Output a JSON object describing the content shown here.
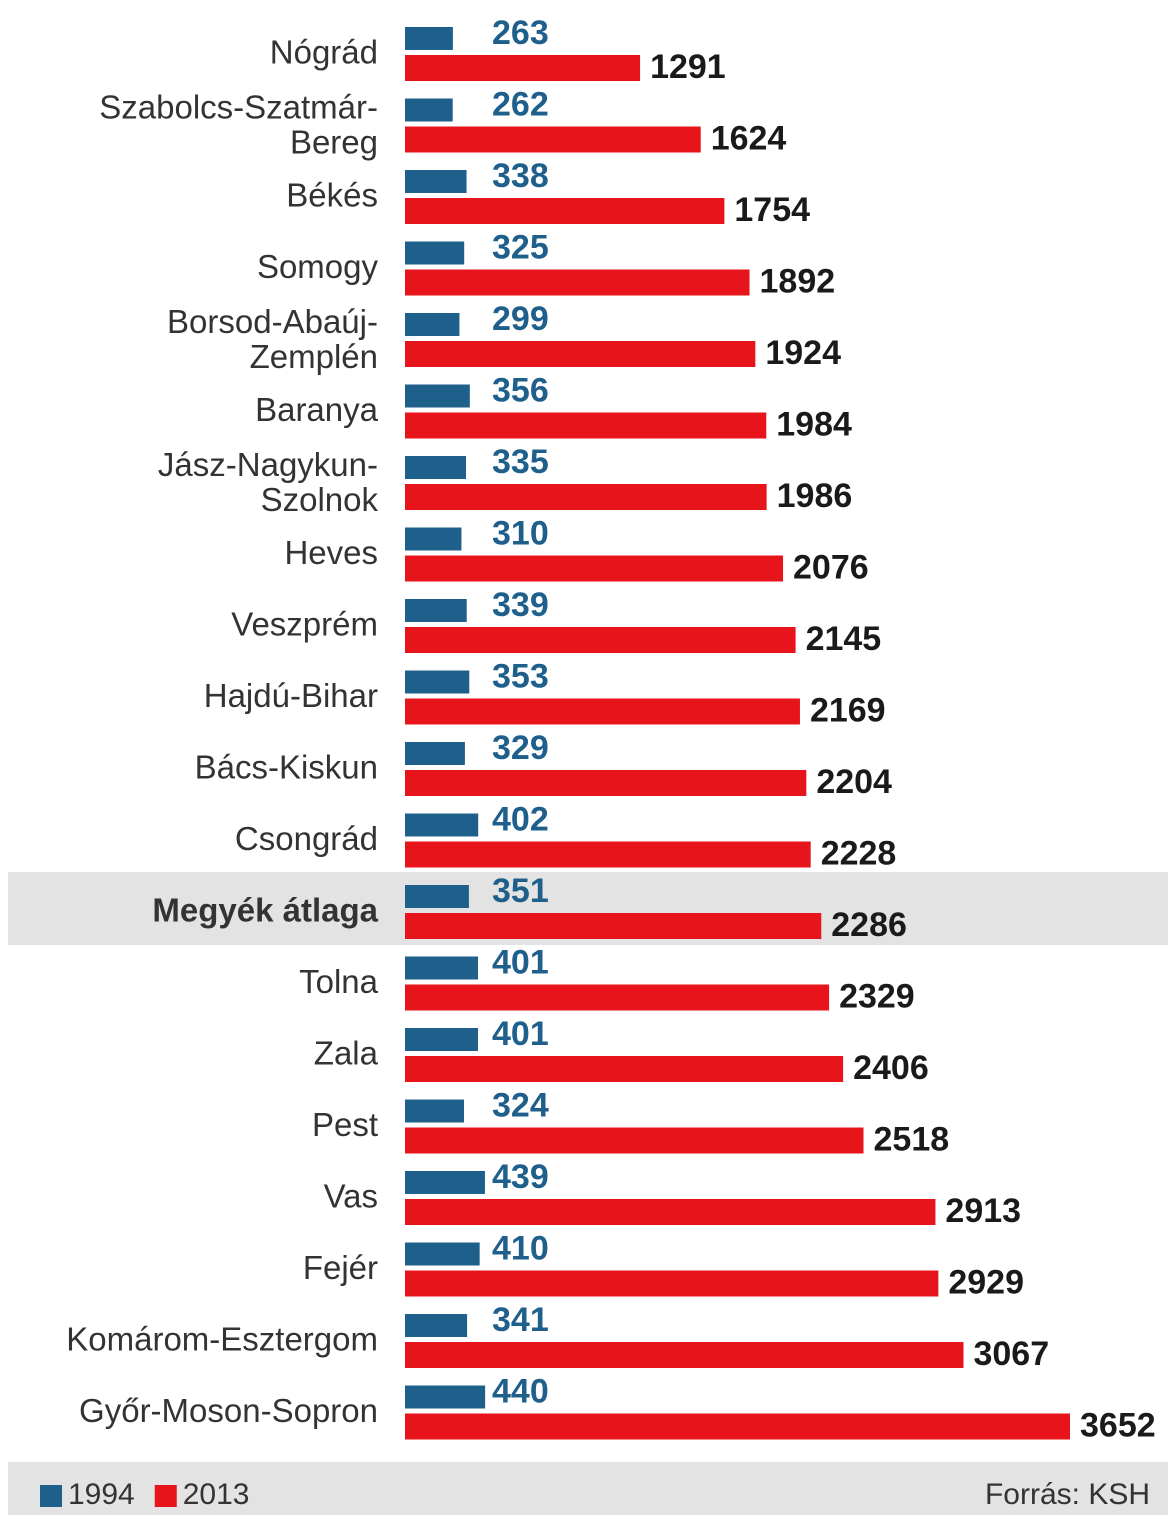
{
  "chart_data": {
    "type": "bar",
    "orientation": "horizontal",
    "categories": [
      "Nógrád",
      "Szabolcs-Szatmár-Bereg",
      "Békés",
      "Somogy",
      "Borsod-Abaúj-Zemplén",
      "Baranya",
      "Jász-Nagykun-Szolnok",
      "Heves",
      "Veszprém",
      "Hajdú-Bihar",
      "Bács-Kiskun",
      "Csongrád",
      "Megyék átlaga",
      "Tolna",
      "Zala",
      "Pest",
      "Vas",
      "Fejér",
      "Komárom-Esztergom",
      "Győr-Moson-Sopron"
    ],
    "series": [
      {
        "name": "1994",
        "color": "#1f5f8b",
        "values": [
          263,
          262,
          338,
          325,
          299,
          356,
          335,
          310,
          339,
          353,
          329,
          402,
          351,
          401,
          401,
          324,
          439,
          410,
          341,
          440
        ]
      },
      {
        "name": "2013",
        "color": "#e8141b",
        "values": [
          1291,
          1624,
          1754,
          1892,
          1924,
          1984,
          1986,
          2076,
          2145,
          2169,
          2204,
          2228,
          2286,
          2329,
          2406,
          2518,
          2913,
          2929,
          3067,
          3652
        ]
      }
    ],
    "highlight": 12,
    "legend": "bottom-left",
    "source": "Forrás: KSH"
  }
}
